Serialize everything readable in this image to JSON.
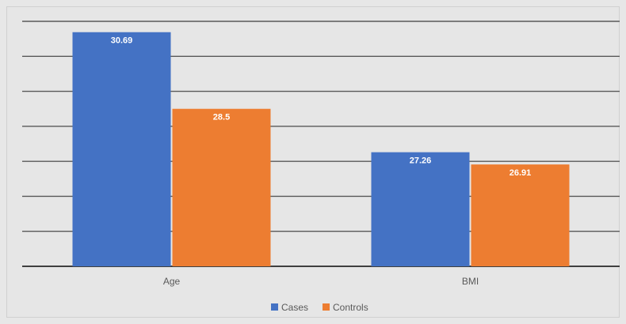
{
  "chart_data": {
    "type": "bar",
    "categories": [
      "Age",
      "BMI"
    ],
    "series": [
      {
        "name": "Cases",
        "color": "#4472c4",
        "values": [
          30.69,
          27.26
        ]
      },
      {
        "name": "Controls",
        "color": "#ed7d31",
        "values": [
          28.5,
          26.91
        ]
      }
    ],
    "data_labels": [
      [
        "30.69",
        "28.5"
      ],
      [
        "27.26",
        "26.91"
      ]
    ],
    "ylim": [
      24,
      31
    ],
    "grid": true,
    "legend_position": "bottom",
    "title": "",
    "xlabel": "",
    "ylabel": ""
  }
}
